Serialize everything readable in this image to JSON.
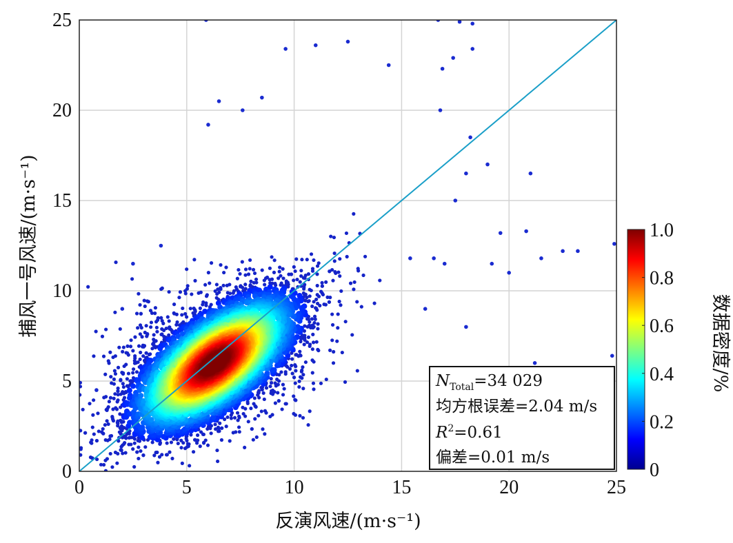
{
  "chart_data": {
    "type": "scatter",
    "xlabel": "反演风速/(m·s⁻¹)",
    "ylabel": "捕风一号风速/(m·s⁻¹)",
    "xlim": [
      0,
      25
    ],
    "ylim": [
      0,
      25
    ],
    "xticks": [
      "0",
      "5",
      "10",
      "15",
      "20",
      "25"
    ],
    "yticks": [
      "0",
      "5",
      "10",
      "15",
      "20",
      "25"
    ],
    "grid": true,
    "reference_line": {
      "x": [
        0,
        25
      ],
      "y": [
        0,
        25
      ],
      "color": "#1a9fc8"
    },
    "density": {
      "center": [
        6.3,
        6.0
      ],
      "major_axis_angle_deg": 45,
      "sigma_along": 2.3,
      "sigma_across": 1.05
    },
    "outliers": [
      [
        5.9,
        25.0
      ],
      [
        16.7,
        25.0
      ],
      [
        17.7,
        24.9
      ],
      [
        18.3,
        24.8
      ],
      [
        9.6,
        23.4
      ],
      [
        11.0,
        23.6
      ],
      [
        12.5,
        23.8
      ],
      [
        17.4,
        22.9
      ],
      [
        18.3,
        23.4
      ],
      [
        14.4,
        22.5
      ],
      [
        16.9,
        22.3
      ],
      [
        6.0,
        19.2
      ],
      [
        6.5,
        20.5
      ],
      [
        7.6,
        20.0
      ],
      [
        8.5,
        20.7
      ],
      [
        16.8,
        20.0
      ],
      [
        18.2,
        18.5
      ],
      [
        19.0,
        17.0
      ],
      [
        18.0,
        16.5
      ],
      [
        17.5,
        15.0
      ],
      [
        21.0,
        16.5
      ],
      [
        19.6,
        13.2
      ],
      [
        20.8,
        13.3
      ],
      [
        22.5,
        12.2
      ],
      [
        23.2,
        12.2
      ],
      [
        24.9,
        12.6
      ],
      [
        19.2,
        11.5
      ],
      [
        21.5,
        11.8
      ],
      [
        20.0,
        11.0
      ],
      [
        17.0,
        11.5
      ],
      [
        15.4,
        11.8
      ],
      [
        16.5,
        11.8
      ],
      [
        21.2,
        6.0
      ],
      [
        24.8,
        6.4
      ],
      [
        16.1,
        9.0
      ],
      [
        18.0,
        8.0
      ],
      [
        0.8,
        4.5
      ],
      [
        2.5,
        11.5
      ],
      [
        3.8,
        12.5
      ],
      [
        2.0,
        9.0
      ]
    ],
    "colorbar": {
      "label": "数据密度/%",
      "range": [
        0,
        1.0
      ],
      "ticks": [
        "0",
        "0.2",
        "0.4",
        "0.6",
        "0.8",
        "1.0"
      ],
      "colormap": "jet"
    },
    "stats_box": {
      "n_symbol": "N",
      "n_subscript": "Total",
      "n_value": "=34 029",
      "rmse_line": "均方根误差=2.04 m/s",
      "r2_symbol": "R",
      "r2_sup": "2",
      "r2_value": "=0.61",
      "bias_line": "偏差=0.01 m/s"
    }
  }
}
